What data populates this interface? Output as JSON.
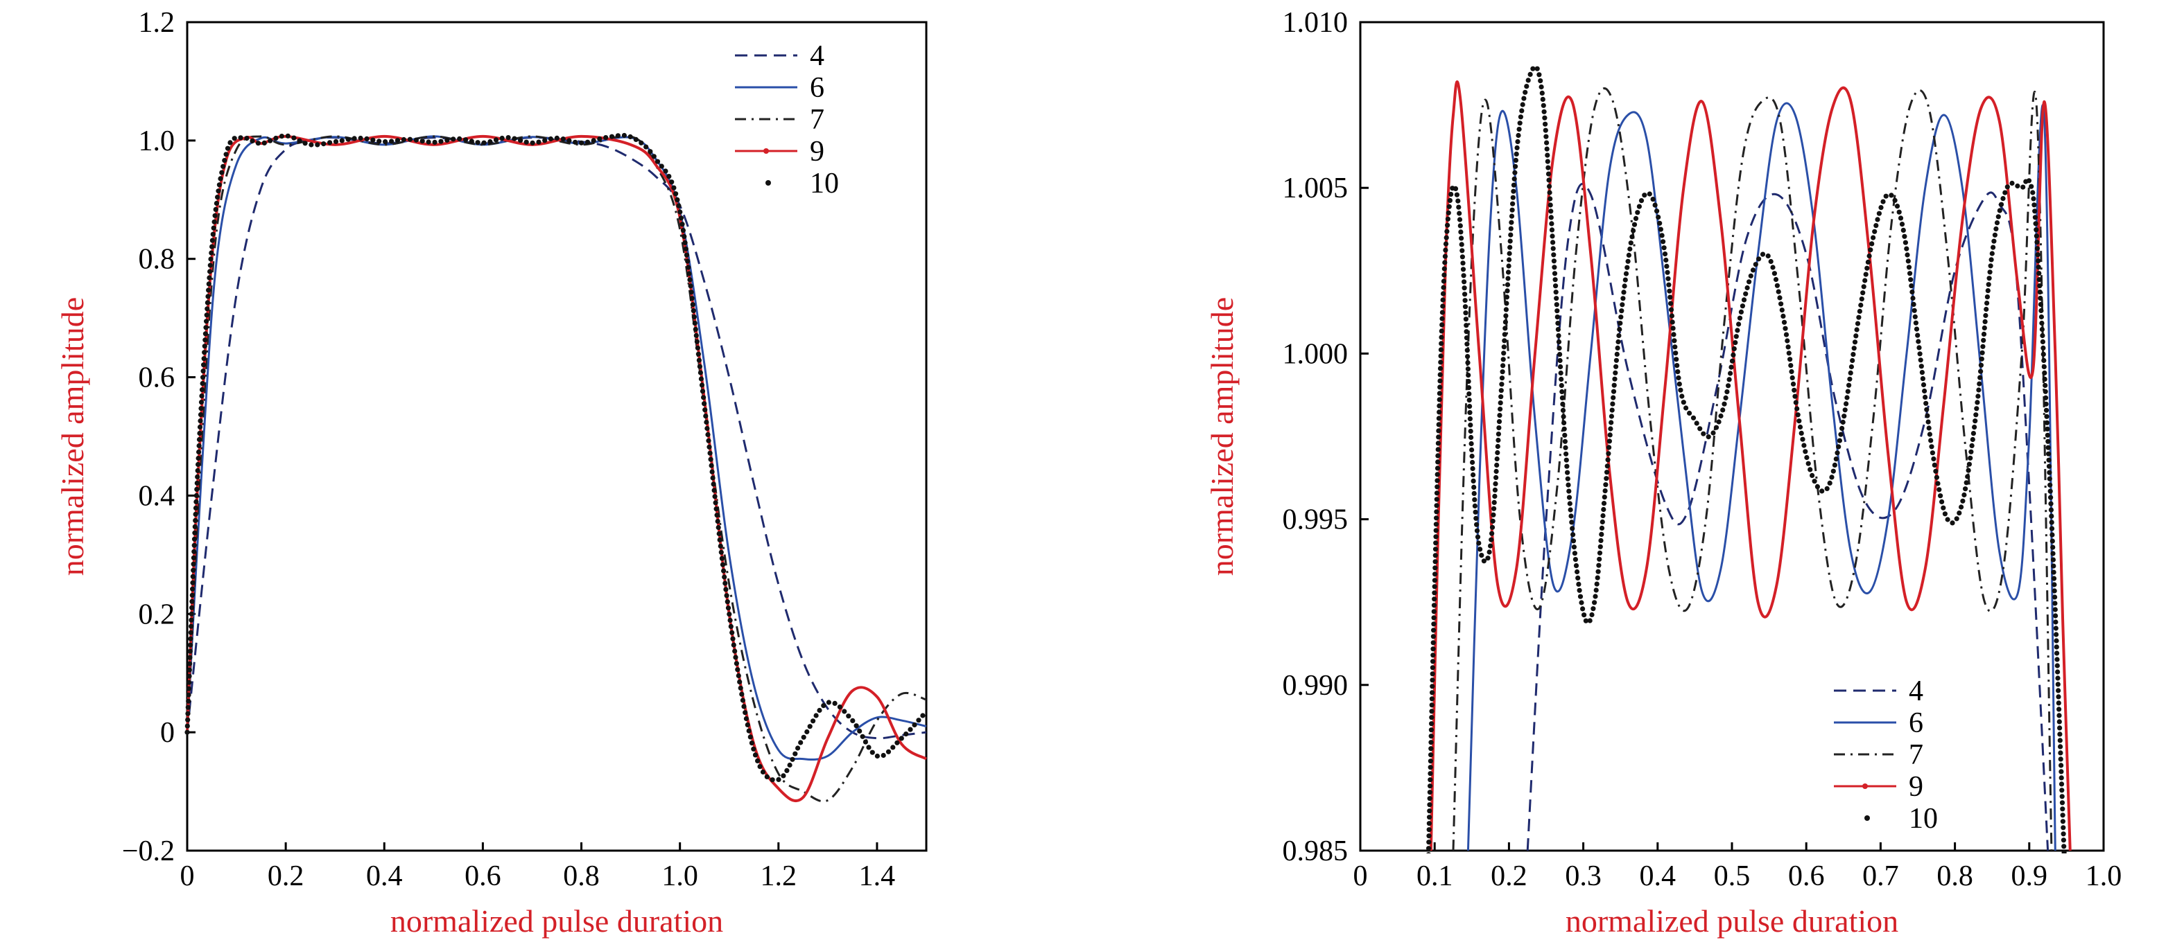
{
  "chart_data": [
    {
      "type": "line",
      "title": "",
      "xlabel": "normalized pulse duration",
      "ylabel": "normalized amplitude",
      "xlim": [
        0,
        1.5
      ],
      "ylim": [
        -0.2,
        1.2
      ],
      "x_ticks": [
        0,
        0.2,
        0.4,
        0.6,
        0.8,
        1.0,
        1.2,
        1.4
      ],
      "x_tick_labels": [
        "0",
        "0.2",
        "0.4",
        "0.6",
        "0.8",
        "1.0",
        "1.2",
        "1.4"
      ],
      "y_ticks": [
        -0.2,
        0,
        0.2,
        0.4,
        0.6,
        0.8,
        1.0,
        1.2
      ],
      "y_tick_labels": [
        "−0.2",
        "0",
        "0.2",
        "0.4",
        "0.6",
        "0.8",
        "1.0",
        "1.2"
      ],
      "grid": false,
      "legend_position": "top-right",
      "series": [
        {
          "name": "4",
          "color": "#1f2a6e",
          "style": "dashed",
          "x": [
            0,
            0.05,
            0.1,
            0.15,
            0.2,
            0.25,
            0.3,
            0.4,
            0.5,
            0.6,
            0.7,
            0.8,
            0.85,
            0.9,
            0.95,
            1.0,
            1.05,
            1.1,
            1.15,
            1.2,
            1.25,
            1.3,
            1.35,
            1.4,
            1.45,
            1.5
          ],
          "y": [
            0,
            0.4,
            0.74,
            0.92,
            0.985,
            1.0,
            1.005,
            0.995,
            1.005,
            0.995,
            1.005,
            0.998,
            0.99,
            0.97,
            0.94,
            0.89,
            0.76,
            0.6,
            0.42,
            0.25,
            0.12,
            0.04,
            0.0,
            -0.01,
            -0.005,
            0.0
          ]
        },
        {
          "name": "6",
          "color": "#2a4fa8",
          "style": "solid",
          "x": [
            0,
            0.03,
            0.06,
            0.1,
            0.15,
            0.2,
            0.3,
            0.4,
            0.5,
            0.6,
            0.7,
            0.8,
            0.9,
            0.95,
            1.0,
            1.05,
            1.1,
            1.15,
            1.2,
            1.25,
            1.3,
            1.35,
            1.4,
            1.45,
            1.5
          ],
          "y": [
            0,
            0.45,
            0.8,
            0.96,
            1.004,
            0.995,
            1.006,
            0.993,
            1.007,
            0.993,
            1.006,
            0.995,
            1.005,
            0.97,
            0.88,
            0.62,
            0.3,
            0.08,
            -0.03,
            -0.045,
            -0.04,
            0.0,
            0.025,
            0.02,
            0.01
          ]
        },
        {
          "name": "7",
          "color": "#222222",
          "style": "dashdot",
          "x": [
            0,
            0.03,
            0.06,
            0.1,
            0.15,
            0.2,
            0.3,
            0.4,
            0.5,
            0.6,
            0.7,
            0.8,
            0.9,
            0.95,
            1.0,
            1.05,
            1.1,
            1.15,
            1.2,
            1.25,
            1.3,
            1.35,
            1.4,
            1.45,
            1.5
          ],
          "y": [
            0,
            0.5,
            0.85,
            0.985,
            1.007,
            0.993,
            1.007,
            0.993,
            1.007,
            0.993,
            1.007,
            0.993,
            1.007,
            0.96,
            0.85,
            0.55,
            0.25,
            0.05,
            -0.07,
            -0.1,
            -0.115,
            -0.06,
            0.02,
            0.065,
            0.055
          ]
        },
        {
          "name": "9",
          "color": "#d42027",
          "style": "solid-marker",
          "x": [
            0,
            0.02,
            0.05,
            0.08,
            0.12,
            0.15,
            0.2,
            0.3,
            0.4,
            0.5,
            0.6,
            0.7,
            0.8,
            0.9,
            0.95,
            1.0,
            1.05,
            1.1,
            1.15,
            1.2,
            1.25,
            1.3,
            1.35,
            1.4,
            1.45,
            1.5
          ],
          "y": [
            0,
            0.4,
            0.8,
            0.97,
            1.005,
            0.995,
            1.007,
            0.993,
            1.007,
            0.993,
            1.007,
            0.993,
            1.007,
            0.993,
            0.96,
            0.87,
            0.56,
            0.2,
            -0.02,
            -0.095,
            -0.11,
            -0.01,
            0.07,
            0.06,
            -0.02,
            -0.045
          ]
        },
        {
          "name": "10",
          "color": "#111111",
          "style": "dotted",
          "x": [
            0,
            0.02,
            0.05,
            0.08,
            0.11,
            0.15,
            0.2,
            0.25,
            0.3,
            0.35,
            0.4,
            0.45,
            0.5,
            0.55,
            0.6,
            0.65,
            0.7,
            0.75,
            0.8,
            0.85,
            0.9,
            0.95,
            1.0,
            1.05,
            1.1,
            1.15,
            1.2,
            1.25,
            1.3,
            1.35,
            1.4,
            1.45,
            1.5
          ],
          "y": [
            0,
            0.42,
            0.82,
            0.98,
            1.005,
            0.995,
            1.008,
            0.993,
            0.998,
            1.004,
            0.998,
            1.002,
            0.997,
            1.003,
            0.996,
            1.005,
            0.996,
            1.004,
            0.996,
            1.005,
            1.006,
            0.97,
            0.88,
            0.55,
            0.2,
            -0.03,
            -0.08,
            -0.01,
            0.05,
            0.02,
            -0.04,
            -0.01,
            0.035
          ]
        }
      ]
    },
    {
      "type": "line",
      "title": "",
      "xlabel": "normalized pulse duration",
      "ylabel": "normalized amplitude",
      "xlim": [
        0,
        1.0
      ],
      "ylim": [
        0.985,
        1.01
      ],
      "x_ticks": [
        0,
        0.1,
        0.2,
        0.3,
        0.4,
        0.5,
        0.6,
        0.7,
        0.8,
        0.9,
        1.0
      ],
      "x_tick_labels": [
        "0",
        "0.1",
        "0.2",
        "0.3",
        "0.4",
        "0.5",
        "0.6",
        "0.7",
        "0.8",
        "0.9",
        "1.0"
      ],
      "y_ticks": [
        0.985,
        0.99,
        0.995,
        1.0,
        1.005,
        1.01
      ],
      "y_tick_labels": [
        "0.985",
        "0.990",
        "0.995",
        "1.000",
        "1.005",
        "1.010"
      ],
      "grid": false,
      "legend_position": "bottom-right",
      "series": [
        {
          "name": "4",
          "color": "#1f2a6e",
          "style": "dashed",
          "x": [
            0.225,
            0.25,
            0.28,
            0.31,
            0.36,
            0.41,
            0.44,
            0.48,
            0.52,
            0.56,
            0.6,
            0.64,
            0.68,
            0.72,
            0.76,
            0.8,
            0.84,
            0.86,
            0.88,
            0.9,
            0.925
          ],
          "y": [
            0.985,
            0.995,
            1.0035,
            1.0048,
            0.9995,
            0.9955,
            0.9952,
            0.999,
            1.0035,
            1.0048,
            1.003,
            0.9985,
            0.9955,
            0.9953,
            0.998,
            1.0025,
            1.0047,
            1.0045,
            1.003,
            0.996,
            0.985
          ]
        },
        {
          "name": "6",
          "color": "#2a4fa8",
          "style": "solid",
          "x": [
            0.145,
            0.16,
            0.175,
            0.19,
            0.21,
            0.235,
            0.26,
            0.285,
            0.31,
            0.335,
            0.36,
            0.385,
            0.41,
            0.435,
            0.46,
            0.485,
            0.51,
            0.535,
            0.56,
            0.585,
            0.61,
            0.635,
            0.66,
            0.685,
            0.71,
            0.735,
            0.76,
            0.785,
            0.81,
            0.835,
            0.86,
            0.885,
            0.9,
            0.92,
            0.935
          ],
          "y": [
            0.985,
            0.996,
            1.004,
            1.0073,
            1.005,
            0.998,
            0.993,
            0.9945,
            1.0,
            1.0055,
            1.0072,
            1.0065,
            1.002,
            0.997,
            0.9928,
            0.9935,
            0.998,
            1.003,
            1.007,
            1.0072,
            1.004,
            0.9985,
            0.994,
            0.9928,
            0.995,
            1.0,
            1.005,
            1.0072,
            1.005,
            0.9995,
            0.994,
            0.9928,
            0.9975,
            1.0072,
            0.985
          ]
        },
        {
          "name": "7",
          "color": "#222222",
          "style": "dashdot",
          "x": [
            0.125,
            0.14,
            0.155,
            0.17,
            0.19,
            0.215,
            0.24,
            0.265,
            0.29,
            0.315,
            0.34,
            0.365,
            0.39,
            0.415,
            0.44,
            0.465,
            0.49,
            0.515,
            0.54,
            0.565,
            0.59,
            0.615,
            0.64,
            0.665,
            0.69,
            0.715,
            0.74,
            0.765,
            0.79,
            0.815,
            0.84,
            0.865,
            0.89,
            0.91,
            0.93
          ],
          "y": [
            0.985,
            0.997,
            1.005,
            1.0076,
            1.003,
            0.995,
            0.9923,
            0.996,
            1.003,
            1.0074,
            1.0076,
            1.004,
            0.998,
            0.9935,
            0.9923,
            0.995,
            1.001,
            1.006,
            1.0076,
            1.007,
            1.002,
            0.996,
            0.9925,
            0.9935,
            0.998,
            1.004,
            1.0075,
            1.0074,
            1.003,
            0.997,
            0.9925,
            0.9935,
            1.0,
            1.0074,
            0.985
          ]
        },
        {
          "name": "9",
          "color": "#d42027",
          "style": "solid-marker",
          "x": [
            0.095,
            0.105,
            0.115,
            0.125,
            0.135,
            0.16,
            0.185,
            0.21,
            0.235,
            0.26,
            0.285,
            0.31,
            0.335,
            0.36,
            0.385,
            0.41,
            0.435,
            0.46,
            0.485,
            0.51,
            0.535,
            0.56,
            0.585,
            0.61,
            0.635,
            0.66,
            0.685,
            0.71,
            0.735,
            0.76,
            0.785,
            0.81,
            0.835,
            0.86,
            0.885,
            0.905,
            0.92,
            0.935,
            0.945,
            0.955
          ],
          "y": [
            0.985,
            0.995,
            1.003,
            1.0072,
            1.0076,
            1.0,
            0.993,
            0.9935,
            1.0,
            1.006,
            1.0076,
            1.003,
            0.9965,
            0.9925,
            0.9935,
            0.999,
            1.005,
            1.0076,
            1.004,
            0.998,
            0.9925,
            0.993,
            0.998,
            1.004,
            1.0074,
            1.0076,
            1.003,
            0.997,
            0.9925,
            0.9935,
            0.9985,
            1.004,
            1.0074,
            1.007,
            1.002,
            0.9995,
            1.0076,
            1.0,
            0.992,
            0.985
          ]
        },
        {
          "name": "10",
          "color": "#111111",
          "style": "dotted",
          "x": [
            0.09,
            0.1,
            0.11,
            0.12,
            0.13,
            0.14,
            0.15,
            0.16,
            0.175,
            0.19,
            0.21,
            0.23,
            0.245,
            0.26,
            0.28,
            0.3,
            0.315,
            0.33,
            0.35,
            0.37,
            0.39,
            0.41,
            0.43,
            0.45,
            0.47,
            0.49,
            0.51,
            0.53,
            0.55,
            0.57,
            0.59,
            0.61,
            0.63,
            0.65,
            0.67,
            0.69,
            0.71,
            0.73,
            0.75,
            0.77,
            0.79,
            0.81,
            0.83,
            0.85,
            0.87,
            0.89,
            0.9,
            0.91,
            0.93,
            0.95
          ],
          "y": [
            0.983,
            0.993,
            1.001,
            1.0045,
            1.0048,
            1.002,
            0.997,
            0.9942,
            0.9942,
            0.999,
            1.006,
            1.0085,
            1.0078,
            1.003,
            0.996,
            0.9922,
            0.9925,
            0.996,
            1.001,
            1.004,
            1.0048,
            1.003,
            0.999,
            0.998,
            0.9975,
            0.9985,
            1.001,
            1.0026,
            1.0029,
            1.001,
            0.998,
            0.9962,
            0.996,
            0.998,
            1.001,
            1.0035,
            1.0048,
            1.0038,
            1.0005,
            0.997,
            0.995,
            0.9955,
            0.9985,
            1.003,
            1.005,
            1.005,
            1.0052,
            1.0035,
            0.995,
            0.983
          ]
        }
      ]
    }
  ]
}
